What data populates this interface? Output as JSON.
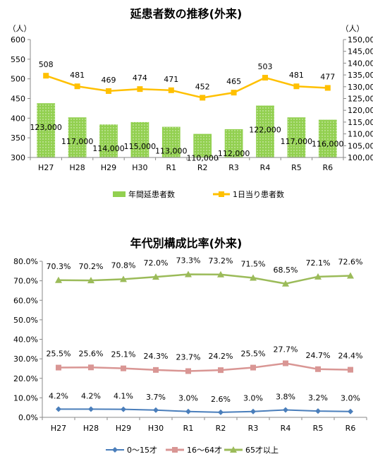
{
  "chart_data": [
    {
      "type": "bar+line",
      "title": "延患者数の推移(外来)",
      "categories": [
        "H27",
        "H28",
        "H29",
        "H30",
        "R1",
        "R2",
        "R3",
        "R4",
        "R5",
        "R6"
      ],
      "y_left": {
        "unit": "（人）",
        "min": 300,
        "max": 600,
        "step": 50
      },
      "y_right": {
        "unit": "（人）",
        "min": 100000,
        "max": 150000,
        "step": 5000
      },
      "grid": false,
      "legend_position": "bottom",
      "series": [
        {
          "name": "年間延患者数",
          "type": "bar",
          "axis": "right",
          "color": "#92d050",
          "values": [
            123000,
            117000,
            114000,
            115000,
            113000,
            110000,
            112000,
            122000,
            117000,
            116000
          ],
          "labels": [
            "123,000",
            "117,000",
            "114,000",
            "115,000",
            "113,000",
            "110,000",
            "112,000",
            "122,000",
            "117,000",
            "116,000"
          ]
        },
        {
          "name": "1日当り患者数",
          "type": "line",
          "axis": "left",
          "color": "#ffc000",
          "values": [
            508,
            481,
            469,
            474,
            471,
            452,
            465,
            503,
            481,
            477
          ],
          "labels": [
            "508",
            "481",
            "469",
            "474",
            "471",
            "452",
            "465",
            "503",
            "481",
            "477"
          ]
        }
      ],
      "ytick_labels_left": [
        "300",
        "350",
        "400",
        "450",
        "500",
        "550",
        "600"
      ],
      "ytick_labels_right": [
        "100,000",
        "105,000",
        "110,000",
        "115,000",
        "120,000",
        "125,000",
        "130,000",
        "135,000",
        "140,000",
        "145,000",
        "150,000"
      ]
    },
    {
      "type": "line",
      "title": "年代別構成比率(外来)",
      "categories": [
        "H27",
        "H28",
        "H29",
        "H30",
        "R1",
        "R2",
        "R3",
        "R4",
        "R5",
        "R6"
      ],
      "ylim": [
        0,
        80
      ],
      "y_step": 10,
      "grid": false,
      "legend_position": "bottom",
      "series": [
        {
          "name": "0～15才",
          "color": "#4a7ebb",
          "marker": "diamond",
          "values": [
            4.2,
            4.2,
            4.1,
            3.7,
            3.0,
            2.6,
            3.0,
            3.8,
            3.2,
            3.0
          ],
          "labels": [
            "4.2%",
            "4.2%",
            "4.1%",
            "3.7%",
            "3.0%",
            "2.6%",
            "3.0%",
            "3.8%",
            "3.2%",
            "3.0%"
          ]
        },
        {
          "name": "16～64才",
          "color": "#d99694",
          "marker": "square",
          "values": [
            25.5,
            25.6,
            25.1,
            24.3,
            23.7,
            24.2,
            25.5,
            27.7,
            24.7,
            24.4
          ],
          "labels": [
            "25.5%",
            "25.6%",
            "25.1%",
            "24.3%",
            "23.7%",
            "24.2%",
            "25.5%",
            "27.7%",
            "24.7%",
            "24.4%"
          ]
        },
        {
          "name": "65才以上",
          "color": "#9bbb59",
          "marker": "triangle",
          "values": [
            70.3,
            70.2,
            70.8,
            72.0,
            73.3,
            73.2,
            71.5,
            68.5,
            72.1,
            72.6
          ],
          "labels": [
            "70.3%",
            "70.2%",
            "70.8%",
            "72.0%",
            "73.3%",
            "73.2%",
            "71.5%",
            "68.5%",
            "72.1%",
            "72.6%"
          ]
        }
      ],
      "ytick_labels": [
        "0.0%",
        "10.0%",
        "20.0%",
        "30.0%",
        "40.0%",
        "50.0%",
        "60.0%",
        "70.0%",
        "80.0%"
      ]
    }
  ]
}
